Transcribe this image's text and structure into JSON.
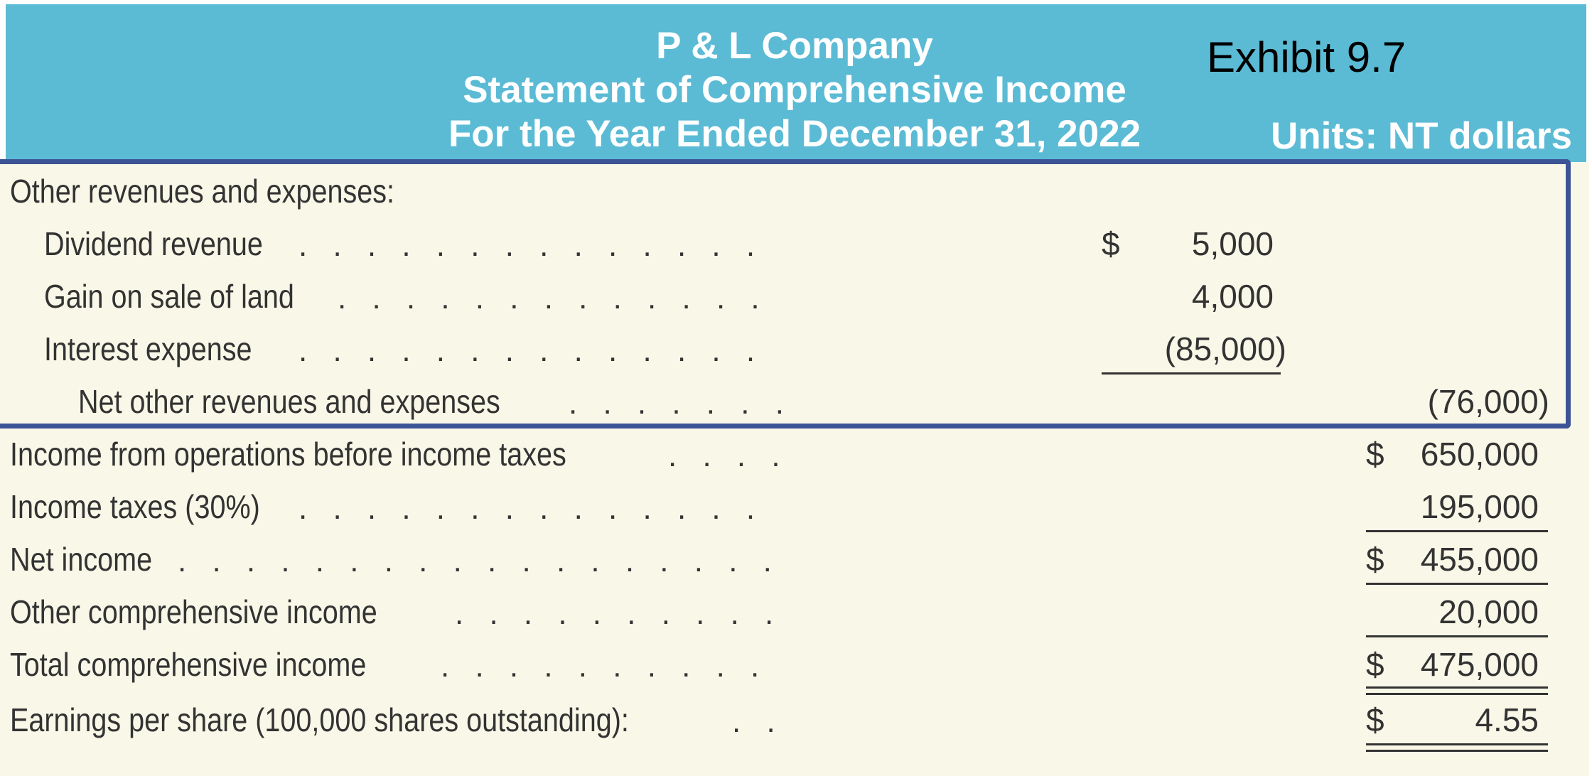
{
  "header": {
    "company": "P & L Company",
    "statement": "Statement of Comprehensive Income",
    "period": "For the Year Ended December 31, 2022",
    "exhibit": "Exhibit 9.7",
    "units": "Units: NT dollars"
  },
  "rows": {
    "other_header": {
      "label": "Other revenues and expenses:"
    },
    "dividend": {
      "label": "Dividend revenue",
      "dots": ". . . . . . . . . . . . . . . . . . . . . . . . . .",
      "currency": "$",
      "amount": "5,000"
    },
    "gain_land": {
      "label": "Gain on sale of land",
      "dots": ". . . . . . . . . . . . . . . . . . . . . . . . . .",
      "amount": "4,000"
    },
    "interest": {
      "label": "Interest expense",
      "dots": ". . . . . . . . . . . . . . . . . . . . . . . . . .",
      "amount": "(85,000)"
    },
    "net_other": {
      "label": "Net other revenues and expenses",
      "dots": ". . . . . . . . . . . . . . . . . . . . . . . . . .",
      "total": "(76,000)"
    },
    "income_before_tax": {
      "label": "Income from operations before income taxes",
      "dots": ". . . . . . . . . . . . . . . . . . . . . . . . . .",
      "currency": "$",
      "total": "650,000"
    },
    "income_taxes": {
      "label": "Income taxes (30%)",
      "dots": ". . . . . . . . . . . . . . . . . . . . . . . . . .",
      "total": "195,000"
    },
    "net_income": {
      "label": "Net income",
      "dots": ". . . . . . . . . . . . . . . . . . . . . . . . . .",
      "currency": "$",
      "total": "455,000"
    },
    "oci": {
      "label": "Other comprehensive income",
      "dots": ". . . . . . . . . . . . . . . . . . . . . . . . . .",
      "total": "20,000"
    },
    "total_ci": {
      "label": "Total comprehensive income",
      "dots": ". . . . . . . . . . . . . . . . . . . . . . . . . .",
      "currency": "$",
      "total": "475,000"
    },
    "eps": {
      "label": "Earnings per share (100,000 shares outstanding):",
      "dots": ". . .",
      "currency": "$",
      "total": "4.55"
    }
  },
  "colors": {
    "header_bg": "#5bbbd5",
    "body_bg": "#f9f8e8",
    "highlight_border": "#3c5496"
  }
}
